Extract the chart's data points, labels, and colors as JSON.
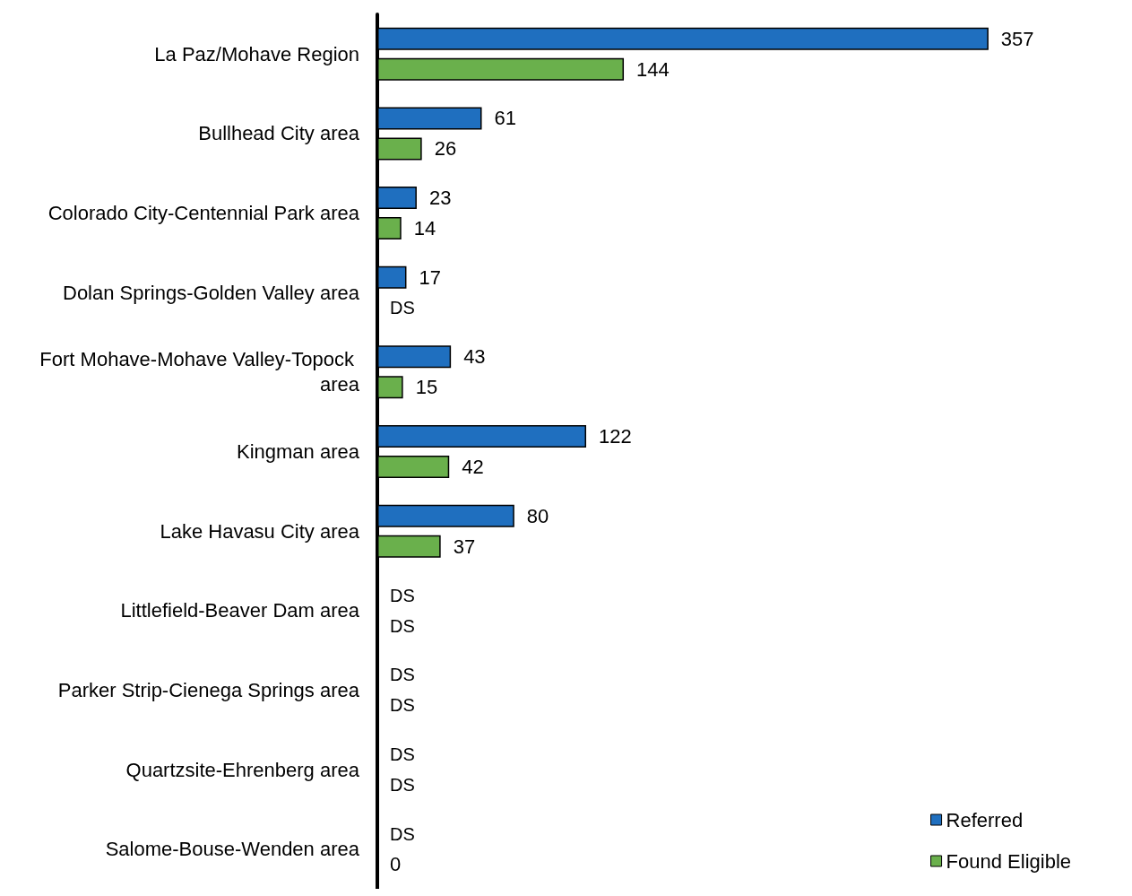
{
  "chart_data": {
    "type": "bar",
    "orientation": "horizontal",
    "categories": [
      "La Paz/Mohave Region",
      "Bullhead City area",
      "Colorado City-Centennial Park area",
      "Dolan Springs-Golden Valley area",
      "Fort Mohave-Mohave Valley-Topock area",
      "Kingman area",
      "Lake Havasu City area",
      "Littlefield-Beaver Dam area",
      "Parker Strip-Cienega Springs area",
      "Quartzsite-Ehrenberg area",
      "Salome-Bouse-Wenden area"
    ],
    "series": [
      {
        "name": "Referred",
        "color": "#1f6fbf",
        "values": [
          357,
          61,
          23,
          17,
          43,
          122,
          80,
          null,
          null,
          null,
          null
        ],
        "value_labels": [
          "357",
          "61",
          "23",
          "17",
          "43",
          "122",
          "80",
          "DS",
          "DS",
          "DS",
          "DS"
        ]
      },
      {
        "name": "Found Eligible",
        "color": "#6ab04c",
        "values": [
          144,
          26,
          14,
          null,
          15,
          42,
          37,
          null,
          null,
          null,
          0
        ],
        "value_labels": [
          "144",
          "26",
          "14",
          "DS",
          "15",
          "42",
          "37",
          "DS",
          "DS",
          "DS",
          "0"
        ]
      }
    ],
    "legend": "bottom right"
  }
}
